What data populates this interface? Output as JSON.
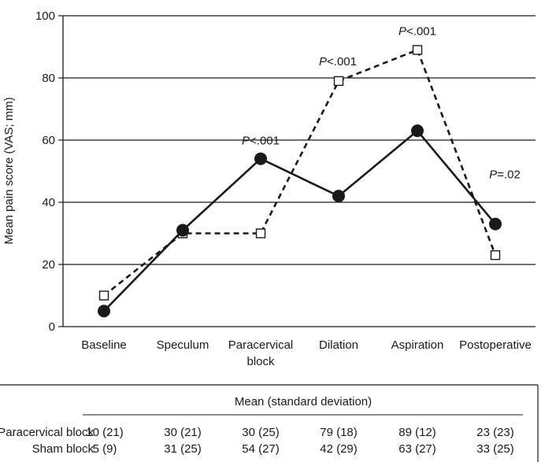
{
  "chart_data": {
    "type": "line",
    "title": "",
    "ylabel": "Mean pain score (VAS; mm)",
    "xlabel": "",
    "ylim": [
      0,
      100
    ],
    "yticks": [
      0,
      20,
      40,
      60,
      80,
      100
    ],
    "grid": true,
    "categories": [
      [
        "Baseline"
      ],
      [
        "Speculum"
      ],
      [
        "Paracervical",
        "block"
      ],
      [
        "Dilation"
      ],
      [
        "Aspiration"
      ],
      [
        "Postoperative"
      ]
    ],
    "series": [
      {
        "style": "dashed",
        "marker": "open-square",
        "values": [
          10,
          30,
          30,
          79,
          89,
          23
        ]
      },
      {
        "style": "solid",
        "marker": "filled-circle",
        "values": [
          5,
          31,
          54,
          42,
          63,
          33
        ]
      }
    ],
    "annotations": [
      {
        "category_index": 2,
        "y": 54,
        "italic": "P",
        "rest": "<.001"
      },
      {
        "category_index": 3,
        "y": 79,
        "italic": "P",
        "rest": "<.001"
      },
      {
        "category_index": 4,
        "y": 89,
        "italic": "P",
        "rest": "<.001"
      },
      {
        "category_index": 5,
        "y": 33,
        "italic": "P",
        "rest": "=.02"
      }
    ],
    "table": {
      "header": "Mean (standard deviation)",
      "rows": [
        {
          "label": "Paracervical block",
          "cells": [
            "10 (21)",
            "30 (21)",
            "30 (25)",
            "79 (18)",
            "89 (12)",
            "23 (23)"
          ]
        },
        {
          "label": "Sham block",
          "cells": [
            "5 (9)",
            "31 (25)",
            "54 (27)",
            "42 (29)",
            "63 (27)",
            "33 (25)"
          ]
        }
      ]
    }
  }
}
